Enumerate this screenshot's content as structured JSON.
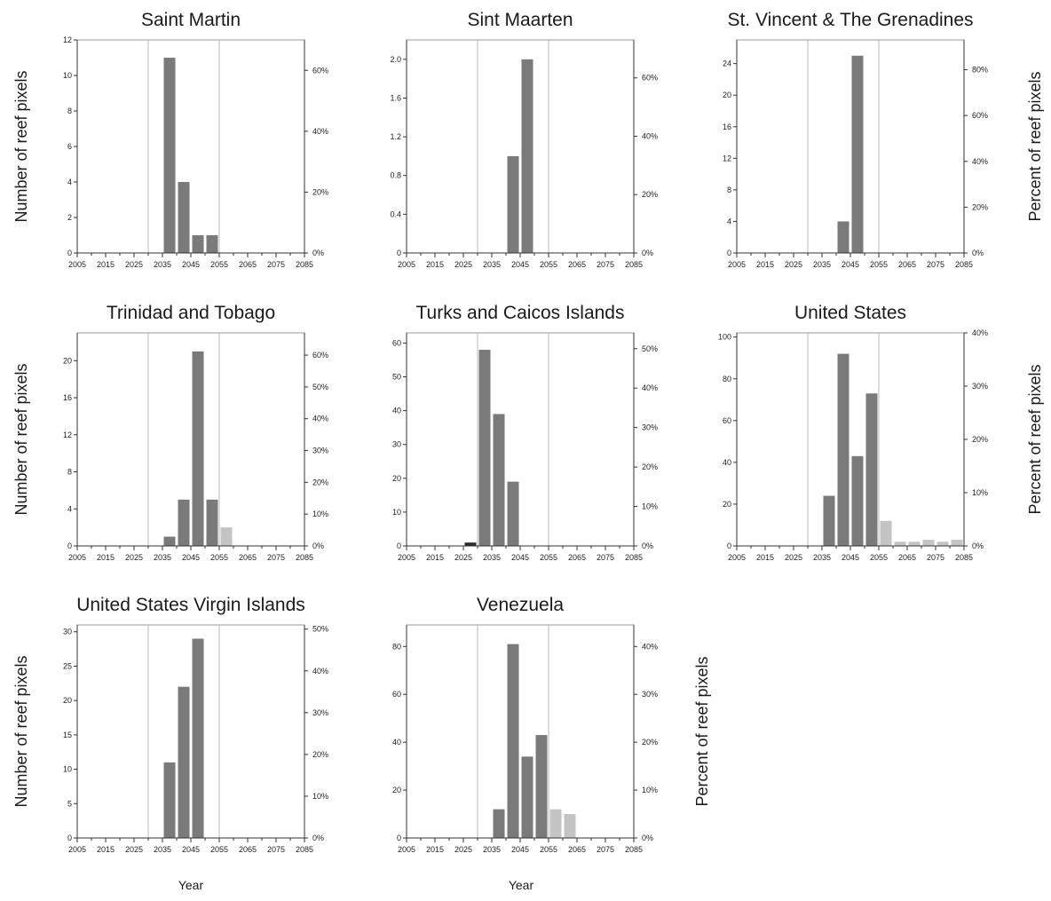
{
  "figure": {
    "left_axis_label": "Number of reef pixels",
    "right_axis_label": "Percent of reef pixels",
    "x_axis_label": "Year",
    "colors": {
      "bar_dark": "#7a7a7a",
      "bar_light": "#c4c4c4",
      "bar_black": "#2a2a2a",
      "marker_line": "#b8b8b8",
      "axis": "#333333"
    }
  },
  "chart_data": [
    {
      "type": "bar",
      "title": "Saint Martin",
      "x_ticks": [
        "2005",
        "2015",
        "2025",
        "2035",
        "2045",
        "2055",
        "2065",
        "2075",
        "2085"
      ],
      "xlim": [
        2005,
        2085
      ],
      "marker_years": [
        2030,
        2055
      ],
      "ylim": [
        0,
        12
      ],
      "y_ticks": [
        0,
        2,
        4,
        6,
        8,
        10,
        12
      ],
      "y2_max": 0.7,
      "y2_ticks": [
        0,
        0.2,
        0.4,
        0.6
      ],
      "y2_tick_labels": [
        "0%",
        "20%",
        "40%",
        "60%"
      ],
      "bars": [
        {
          "year": 2035,
          "value": 11,
          "shade": "dark"
        },
        {
          "year": 2040,
          "value": 4,
          "shade": "dark"
        },
        {
          "year": 2045,
          "value": 1,
          "shade": "dark"
        },
        {
          "year": 2050,
          "value": 1,
          "shade": "dark"
        }
      ]
    },
    {
      "type": "bar",
      "title": "Sint Maarten",
      "x_ticks": [
        "2005",
        "2015",
        "2025",
        "2035",
        "2045",
        "2055",
        "2065",
        "2075",
        "2085"
      ],
      "xlim": [
        2005,
        2085
      ],
      "marker_years": [
        2030,
        2055
      ],
      "ylim": [
        0,
        2.2
      ],
      "y_ticks": [
        0,
        0.4,
        0.8,
        1.2,
        1.6,
        2.0
      ],
      "y_tick_labels": [
        "0",
        "0.4",
        "0.8",
        "1.2",
        "1.6",
        "2.0"
      ],
      "y2_max": 0.73,
      "y2_ticks": [
        0,
        0.2,
        0.4,
        0.6
      ],
      "y2_tick_labels": [
        "0%",
        "20%",
        "40%",
        "60%"
      ],
      "bars": [
        {
          "year": 2040,
          "value": 1,
          "shade": "dark"
        },
        {
          "year": 2045,
          "value": 2,
          "shade": "dark"
        }
      ]
    },
    {
      "type": "bar",
      "title": "St. Vincent & The Grenadines",
      "x_ticks": [
        "2005",
        "2015",
        "2025",
        "2035",
        "2045",
        "2055",
        "2065",
        "2075",
        "2085"
      ],
      "xlim": [
        2005,
        2085
      ],
      "marker_years": [
        2030,
        2055
      ],
      "ylim": [
        0,
        27
      ],
      "y_ticks": [
        0,
        4,
        8,
        12,
        16,
        20,
        24
      ],
      "y2_max": 0.93,
      "y2_ticks": [
        0,
        0.2,
        0.4,
        0.6,
        0.8
      ],
      "y2_tick_labels": [
        "0%",
        "20%",
        "40%",
        "60%",
        "80%"
      ],
      "bars": [
        {
          "year": 2040,
          "value": 4,
          "shade": "dark"
        },
        {
          "year": 2045,
          "value": 25,
          "shade": "dark"
        }
      ]
    },
    {
      "type": "bar",
      "title": "Trinidad and Tobago",
      "x_ticks": [
        "2005",
        "2015",
        "2025",
        "2035",
        "2045",
        "2055",
        "2065",
        "2075",
        "2085"
      ],
      "xlim": [
        2005,
        2085
      ],
      "marker_years": [
        2030,
        2055
      ],
      "ylim": [
        0,
        23
      ],
      "y_ticks": [
        0,
        4,
        8,
        12,
        16,
        20
      ],
      "y2_max": 0.67,
      "y2_ticks": [
        0,
        0.1,
        0.2,
        0.3,
        0.4,
        0.5,
        0.6
      ],
      "y2_tick_labels": [
        "0%",
        "10%",
        "20%",
        "30%",
        "40%",
        "50%",
        "60%"
      ],
      "bars": [
        {
          "year": 2035,
          "value": 1,
          "shade": "dark"
        },
        {
          "year": 2040,
          "value": 5,
          "shade": "dark"
        },
        {
          "year": 2045,
          "value": 21,
          "shade": "dark"
        },
        {
          "year": 2050,
          "value": 5,
          "shade": "dark"
        },
        {
          "year": 2055,
          "value": 2,
          "shade": "light"
        }
      ]
    },
    {
      "type": "bar",
      "title": "Turks and Caicos Islands",
      "x_ticks": [
        "2005",
        "2015",
        "2025",
        "2035",
        "2045",
        "2055",
        "2065",
        "2075",
        "2085"
      ],
      "xlim": [
        2005,
        2085
      ],
      "marker_years": [
        2030,
        2055
      ],
      "ylim": [
        0,
        63
      ],
      "y_ticks": [
        0,
        10,
        20,
        30,
        40,
        50,
        60
      ],
      "y2_max": 0.54,
      "y2_ticks": [
        0,
        0.1,
        0.2,
        0.3,
        0.4,
        0.5
      ],
      "y2_tick_labels": [
        "0%",
        "10%",
        "20%",
        "30%",
        "40%",
        "50%"
      ],
      "bars": [
        {
          "year": 2025,
          "value": 1,
          "shade": "black"
        },
        {
          "year": 2030,
          "value": 58,
          "shade": "dark"
        },
        {
          "year": 2035,
          "value": 39,
          "shade": "dark"
        },
        {
          "year": 2040,
          "value": 19,
          "shade": "dark"
        }
      ]
    },
    {
      "type": "bar",
      "title": "United States",
      "x_ticks": [
        "2005",
        "2015",
        "2025",
        "2035",
        "2045",
        "2055",
        "2065",
        "2075",
        "2085"
      ],
      "xlim": [
        2005,
        2085
      ],
      "marker_years": [
        2030,
        2055
      ],
      "ylim": [
        0,
        102
      ],
      "y_ticks": [
        0,
        20,
        40,
        60,
        80,
        100
      ],
      "y2_max": 0.4,
      "y2_ticks": [
        0,
        0.1,
        0.2,
        0.3,
        0.4
      ],
      "y2_tick_labels": [
        "0%",
        "10%",
        "20%",
        "30%",
        "40%"
      ],
      "bars": [
        {
          "year": 2035,
          "value": 24,
          "shade": "dark"
        },
        {
          "year": 2040,
          "value": 92,
          "shade": "dark"
        },
        {
          "year": 2045,
          "value": 43,
          "shade": "dark"
        },
        {
          "year": 2050,
          "value": 73,
          "shade": "dark"
        },
        {
          "year": 2055,
          "value": 12,
          "shade": "light"
        },
        {
          "year": 2060,
          "value": 2,
          "shade": "light"
        },
        {
          "year": 2065,
          "value": 2,
          "shade": "light"
        },
        {
          "year": 2070,
          "value": 3,
          "shade": "light"
        },
        {
          "year": 2075,
          "value": 2,
          "shade": "light"
        },
        {
          "year": 2080,
          "value": 3,
          "shade": "light"
        }
      ]
    },
    {
      "type": "bar",
      "title": "United States Virgin Islands",
      "x_ticks": [
        "2005",
        "2015",
        "2025",
        "2035",
        "2045",
        "2055",
        "2065",
        "2075",
        "2085"
      ],
      "xlim": [
        2005,
        2085
      ],
      "marker_years": [
        2030,
        2055
      ],
      "ylim": [
        0,
        31
      ],
      "y_ticks": [
        0,
        5,
        10,
        15,
        20,
        25,
        30
      ],
      "y2_max": 0.51,
      "y2_ticks": [
        0,
        0.1,
        0.2,
        0.3,
        0.4,
        0.5
      ],
      "y2_tick_labels": [
        "0%",
        "10%",
        "20%",
        "30%",
        "40%",
        "50%"
      ],
      "bars": [
        {
          "year": 2035,
          "value": 11,
          "shade": "dark"
        },
        {
          "year": 2040,
          "value": 22,
          "shade": "dark"
        },
        {
          "year": 2045,
          "value": 29,
          "shade": "dark"
        }
      ]
    },
    {
      "type": "bar",
      "title": "Venezuela",
      "x_ticks": [
        "2005",
        "2015",
        "2025",
        "2035",
        "2045",
        "2055",
        "2065",
        "2075",
        "2085"
      ],
      "xlim": [
        2005,
        2085
      ],
      "marker_years": [
        2030,
        2055
      ],
      "ylim": [
        0,
        89
      ],
      "y_ticks": [
        0,
        20,
        40,
        60,
        80
      ],
      "y2_max": 0.445,
      "y2_ticks": [
        0,
        0.1,
        0.2,
        0.3,
        0.4
      ],
      "y2_tick_labels": [
        "0%",
        "10%",
        "20%",
        "30%",
        "40%"
      ],
      "bars": [
        {
          "year": 2035,
          "value": 12,
          "shade": "dark"
        },
        {
          "year": 2040,
          "value": 81,
          "shade": "dark"
        },
        {
          "year": 2045,
          "value": 34,
          "shade": "dark"
        },
        {
          "year": 2050,
          "value": 43,
          "shade": "dark"
        },
        {
          "year": 2055,
          "value": 12,
          "shade": "light"
        },
        {
          "year": 2060,
          "value": 10,
          "shade": "light"
        }
      ]
    }
  ]
}
